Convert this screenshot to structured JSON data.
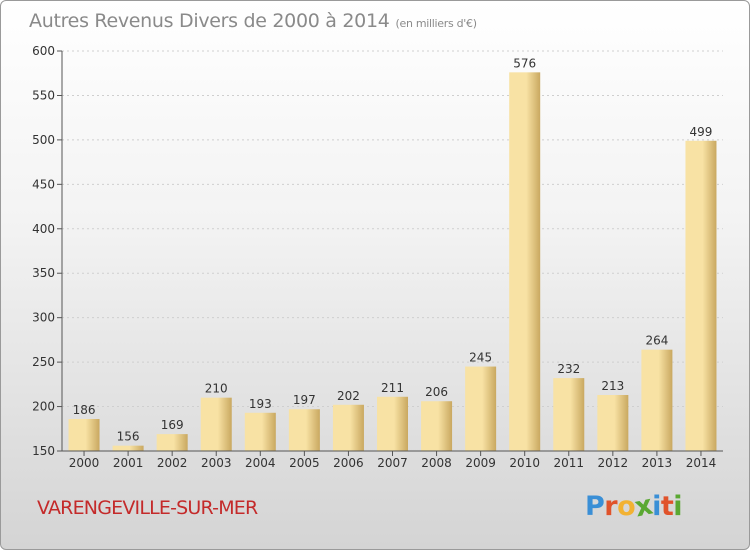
{
  "header": {
    "title": "Autres Revenus Divers de 2000 à 2014",
    "subtitle": "(en milliers d'€)"
  },
  "footer": {
    "city": "VARENGEVILLE-SUR-MER",
    "logo": {
      "letters": [
        "P",
        "r",
        "o",
        "x",
        "i",
        "t",
        "i"
      ],
      "colors": [
        "#3a8fd6",
        "#e0532b",
        "#f2b233",
        "#5aa832",
        "#3a8fd6",
        "#e0532b",
        "#5aa832"
      ]
    }
  },
  "colors": {
    "bar_light": "#f8e2a4",
    "bar_dark": "#c9a860",
    "axis": "#555555",
    "grid": "#cfcfcf",
    "text": "#333333"
  },
  "chart_data": {
    "type": "bar",
    "categories": [
      "2000",
      "2001",
      "2002",
      "2003",
      "2004",
      "2005",
      "2006",
      "2007",
      "2008",
      "2009",
      "2010",
      "2011",
      "2012",
      "2013",
      "2014"
    ],
    "values": [
      186,
      156,
      169,
      210,
      193,
      197,
      202,
      211,
      206,
      245,
      576,
      232,
      213,
      264,
      499
    ],
    "data_labels": [
      "186",
      "156",
      "169",
      "210",
      "193",
      "197",
      "202",
      "211",
      "206",
      "245",
      "576",
      "232",
      "213",
      "264",
      "499"
    ],
    "title": "Autres Revenus Divers de 2000 à 2014",
    "subtitle": "(en milliers d'€)",
    "ylim": [
      150,
      600
    ],
    "yticks": [
      150,
      200,
      250,
      300,
      350,
      400,
      450,
      500,
      550,
      600
    ],
    "grid": true
  }
}
